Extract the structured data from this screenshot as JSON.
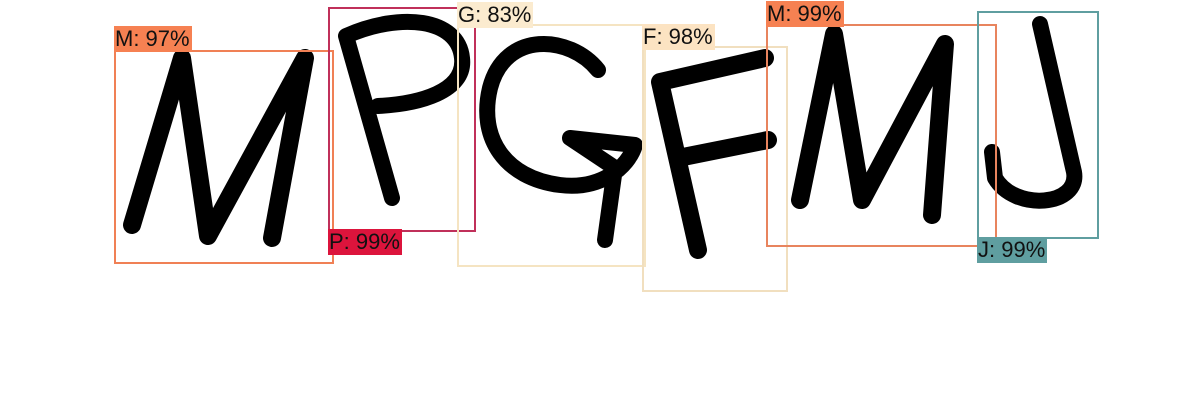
{
  "detections": [
    {
      "char": "M",
      "label": "M: 97%",
      "confidence": 0.97,
      "color": "#F08055",
      "label_bg": "#F68152"
    },
    {
      "char": "P",
      "label": "P: 99%",
      "confidence": 0.99,
      "color": "#C0305A",
      "label_bg": "#DC143C"
    },
    {
      "char": "G",
      "label": "G: 83%",
      "confidence": 0.83,
      "color": "#F5E4C2",
      "label_bg": "#FBEBCF"
    },
    {
      "char": "F",
      "label": "F: 98%",
      "confidence": 0.98,
      "color": "#F1DFBF",
      "label_bg": "#FCE3C2"
    },
    {
      "char": "M",
      "label": "M: 99%",
      "confidence": 0.99,
      "color": "#E8845E",
      "label_bg": "#F68152"
    },
    {
      "char": "J",
      "label": "J: 99%",
      "confidence": 0.99,
      "color": "#5F9EA0",
      "label_bg": "#5F9EA0"
    }
  ]
}
